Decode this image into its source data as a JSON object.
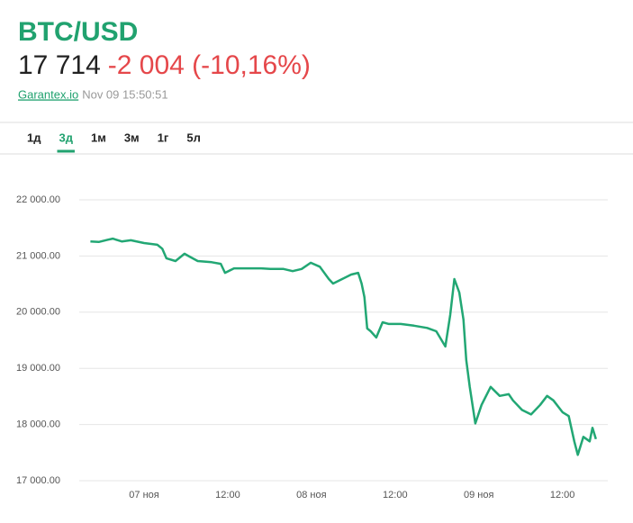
{
  "header": {
    "symbol": "BTC/USD",
    "price": "17 714",
    "change": "-2 004 (-10,16%)",
    "source": "Garantex.io",
    "timestamp": "Nov 09 15:50:51"
  },
  "tabs": [
    "1д",
    "3д",
    "1м",
    "3м",
    "1г",
    "5л"
  ],
  "active_tab": 1,
  "chart_data": {
    "type": "line",
    "color": "#22a774",
    "grid": true,
    "x": [
      -7.7,
      -6.5,
      -5.2,
      -4.5,
      -3.2,
      -1.9,
      0,
      1.9,
      2.6,
      3.2,
      4.5,
      5.8,
      6.5,
      7.7,
      9.7,
      11.0,
      11.6,
      12.9,
      14.8,
      16.8,
      18.1,
      20.0,
      21.3,
      22.6,
      23.9,
      25.2,
      26.5,
      27.1,
      28.4,
      29.7,
      30.7,
      31.2,
      31.6,
      32.0,
      32.5,
      33.3,
      34.2,
      35.1,
      36.8,
      38.7,
      40.6,
      41.9,
      43.2,
      43.9,
      44.5,
      45.2,
      45.8,
      46.2,
      46.7,
      47.5,
      48.4,
      49.7,
      51.0,
      52.3,
      52.9,
      54.2,
      55.5,
      56.8,
      57.8,
      58.7,
      60.0,
      60.9,
      61.7,
      62.2,
      63.0,
      63.9,
      64.3,
      64.8
    ],
    "values": [
      21260,
      21250,
      21290,
      21310,
      21260,
      21280,
      21230,
      21200,
      21130,
      20960,
      20910,
      21040,
      20990,
      20910,
      20890,
      20860,
      20700,
      20780,
      20780,
      20780,
      20770,
      20770,
      20730,
      20770,
      20880,
      20810,
      20590,
      20510,
      20590,
      20670,
      20700,
      20510,
      20270,
      19710,
      19660,
      19550,
      19820,
      19790,
      19790,
      19760,
      19720,
      19660,
      19390,
      19950,
      20590,
      20350,
      19870,
      19150,
      18670,
      18020,
      18350,
      18670,
      18510,
      18540,
      18430,
      18260,
      18180,
      18350,
      18510,
      18430,
      18220,
      18150,
      17700,
      17460,
      17780,
      17700,
      17940,
      17740
    ],
    "xlim": [
      -9.3,
      66.5
    ],
    "xticks": [
      {
        "value": 0,
        "label": "07 ноя"
      },
      {
        "value": 12,
        "label": "12:00"
      },
      {
        "value": 24,
        "label": "08 ноя"
      },
      {
        "value": 36,
        "label": "12:00"
      },
      {
        "value": 48,
        "label": "09 ноя"
      },
      {
        "value": 60,
        "label": "12:00"
      }
    ],
    "ylim": [
      17000,
      22000
    ],
    "yticks": [
      {
        "value": 17000,
        "label": "17 000.00"
      },
      {
        "value": 18000,
        "label": "18 000.00"
      },
      {
        "value": 19000,
        "label": "19 000.00"
      },
      {
        "value": 20000,
        "label": "20 000.00"
      },
      {
        "value": 21000,
        "label": "21 000.00"
      },
      {
        "value": 22000,
        "label": "22 000.00"
      }
    ]
  }
}
